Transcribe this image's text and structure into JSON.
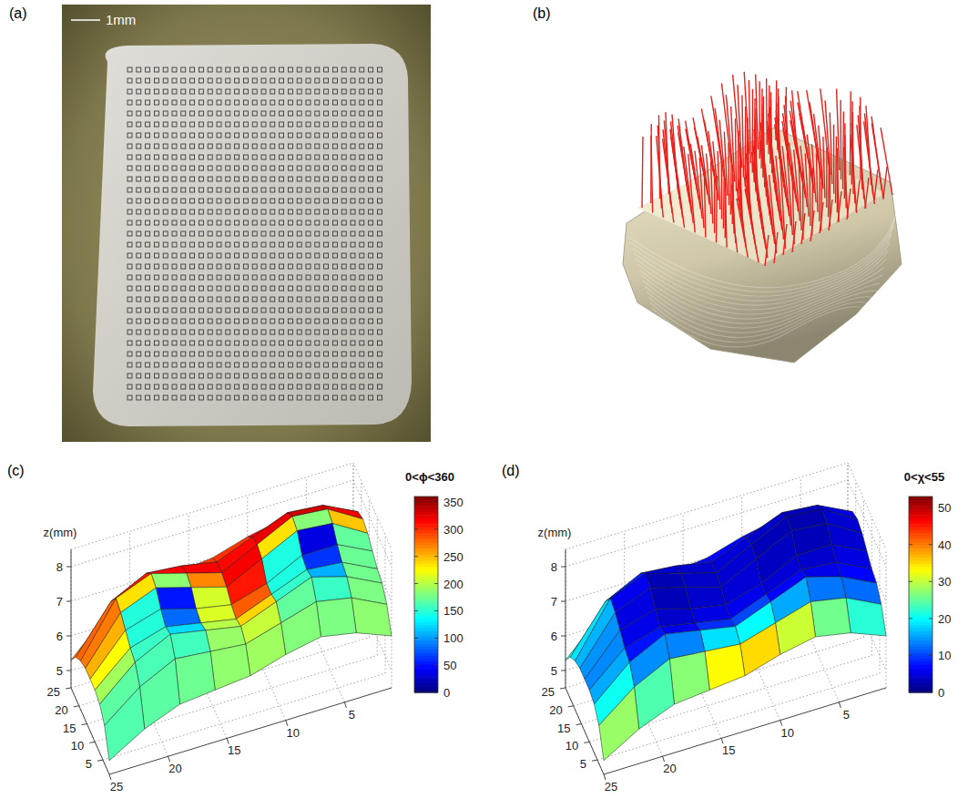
{
  "panels": {
    "a": {
      "label": "(a)",
      "scale_bar": "1mm"
    },
    "b": {
      "label": "(b)"
    }
  },
  "chart_data": [
    {
      "type": "surface",
      "panel_label": "(c)",
      "zlabel": "z(mm)",
      "x": [
        1,
        4,
        7,
        10,
        13,
        16,
        19,
        22,
        25
      ],
      "y": [
        1,
        4,
        7,
        10,
        13,
        16,
        19,
        22,
        25
      ],
      "xlim": [
        1,
        25
      ],
      "ylim": [
        1,
        25
      ],
      "zlim": [
        4.5,
        8.5
      ],
      "xticks": [
        5,
        10,
        15,
        20,
        25
      ],
      "yticks": [
        5,
        10,
        15,
        20,
        25
      ],
      "zticks": [
        5,
        6,
        7,
        8
      ],
      "grid": true,
      "z": [
        [
          6.0,
          6.4,
          6.6,
          6.4,
          6.1,
          6.0,
          5.9,
          5.5,
          4.9
        ],
        [
          6.6,
          7.1,
          7.3,
          7.0,
          6.7,
          6.8,
          6.9,
          6.4,
          5.6
        ],
        [
          6.9,
          7.4,
          7.7,
          7.3,
          6.9,
          7.1,
          7.3,
          6.8,
          5.9
        ],
        [
          7.0,
          7.5,
          7.6,
          7.2,
          6.8,
          7.0,
          7.2,
          6.9,
          6.0
        ],
        [
          7.2,
          7.7,
          7.7,
          7.2,
          6.9,
          7.1,
          7.4,
          7.1,
          6.0
        ],
        [
          7.4,
          8.0,
          8.1,
          7.6,
          7.1,
          7.4,
          7.7,
          7.3,
          6.0
        ],
        [
          7.5,
          8.1,
          8.2,
          7.7,
          7.2,
          7.5,
          7.8,
          7.4,
          5.9
        ],
        [
          7.4,
          7.9,
          8.0,
          7.6,
          7.2,
          7.4,
          7.5,
          7.0,
          5.7
        ],
        [
          7.1,
          7.4,
          7.5,
          7.3,
          7.0,
          6.9,
          6.8,
          6.3,
          5.3
        ]
      ],
      "color_values": [
        [
          190,
          185,
          180,
          185,
          190,
          180,
          175,
          170,
          165
        ],
        [
          185,
          180,
          170,
          190,
          200,
          175,
          165,
          160,
          160
        ],
        [
          200,
          150,
          120,
          200,
          230,
          150,
          140,
          180,
          170
        ],
        [
          250,
          100,
          60,
          230,
          300,
          120,
          80,
          220,
          200
        ],
        [
          280,
          60,
          30,
          260,
          340,
          90,
          40,
          250,
          230
        ],
        [
          300,
          40,
          10,
          280,
          350,
          60,
          20,
          280,
          250
        ],
        [
          310,
          330,
          350,
          300,
          340,
          320,
          340,
          300,
          260
        ],
        [
          320,
          320,
          330,
          310,
          300,
          310,
          300,
          290,
          270
        ],
        [
          330,
          330,
          320,
          300,
          280,
          290,
          280,
          270,
          260
        ]
      ],
      "colorbar": {
        "title": "0<ϕ<360",
        "range": [
          0,
          360
        ],
        "ticks": [
          0,
          50,
          100,
          150,
          200,
          250,
          300,
          350
        ]
      }
    },
    {
      "type": "surface",
      "panel_label": "(d)",
      "zlabel": "z(mm)",
      "x": [
        1,
        4,
        7,
        10,
        13,
        16,
        19,
        22,
        25
      ],
      "y": [
        1,
        4,
        7,
        10,
        13,
        16,
        19,
        22,
        25
      ],
      "xlim": [
        1,
        25
      ],
      "ylim": [
        1,
        25
      ],
      "zlim": [
        4.5,
        8.5
      ],
      "xticks": [
        5,
        10,
        15,
        20,
        25
      ],
      "yticks": [
        5,
        10,
        15,
        20,
        25
      ],
      "zticks": [
        5,
        6,
        7,
        8
      ],
      "grid": true,
      "z": [
        [
          6.0,
          6.4,
          6.6,
          6.4,
          6.1,
          6.0,
          5.9,
          5.5,
          4.9
        ],
        [
          6.6,
          7.1,
          7.3,
          7.0,
          6.7,
          6.8,
          6.9,
          6.4,
          5.6
        ],
        [
          6.9,
          7.4,
          7.7,
          7.3,
          6.9,
          7.1,
          7.3,
          6.8,
          5.9
        ],
        [
          7.0,
          7.5,
          7.6,
          7.2,
          6.8,
          7.0,
          7.2,
          6.9,
          6.0
        ],
        [
          7.2,
          7.7,
          7.7,
          7.2,
          6.9,
          7.1,
          7.4,
          7.1,
          6.0
        ],
        [
          7.4,
          8.0,
          8.1,
          7.6,
          7.1,
          7.4,
          7.7,
          7.3,
          6.0
        ],
        [
          7.5,
          8.1,
          8.2,
          7.7,
          7.2,
          7.5,
          7.8,
          7.4,
          5.9
        ],
        [
          7.4,
          7.9,
          8.0,
          7.6,
          7.2,
          7.4,
          7.5,
          7.0,
          5.7
        ],
        [
          7.1,
          7.4,
          7.5,
          7.3,
          7.0,
          6.9,
          6.8,
          6.3,
          5.3
        ]
      ],
      "color_values": [
        [
          25,
          30,
          35,
          42,
          45,
          38,
          30,
          28,
          35
        ],
        [
          15,
          18,
          20,
          25,
          28,
          22,
          18,
          20,
          28
        ],
        [
          8,
          8,
          5,
          12,
          15,
          8,
          6,
          12,
          22
        ],
        [
          6,
          5,
          4,
          6,
          8,
          5,
          4,
          8,
          20
        ],
        [
          5,
          4,
          3,
          5,
          4,
          4,
          3,
          7,
          20
        ],
        [
          5,
          3,
          2,
          4,
          5,
          3,
          2,
          8,
          22
        ],
        [
          6,
          3,
          2,
          4,
          4,
          3,
          3,
          10,
          24
        ],
        [
          7,
          4,
          4,
          5,
          5,
          4,
          6,
          14,
          26
        ],
        [
          10,
          8,
          8,
          8,
          9,
          10,
          12,
          18,
          28
        ]
      ],
      "colorbar": {
        "title": "0<χ<55",
        "range": [
          0,
          53
        ],
        "ticks": [
          0,
          10,
          20,
          30,
          40,
          50
        ]
      }
    }
  ]
}
